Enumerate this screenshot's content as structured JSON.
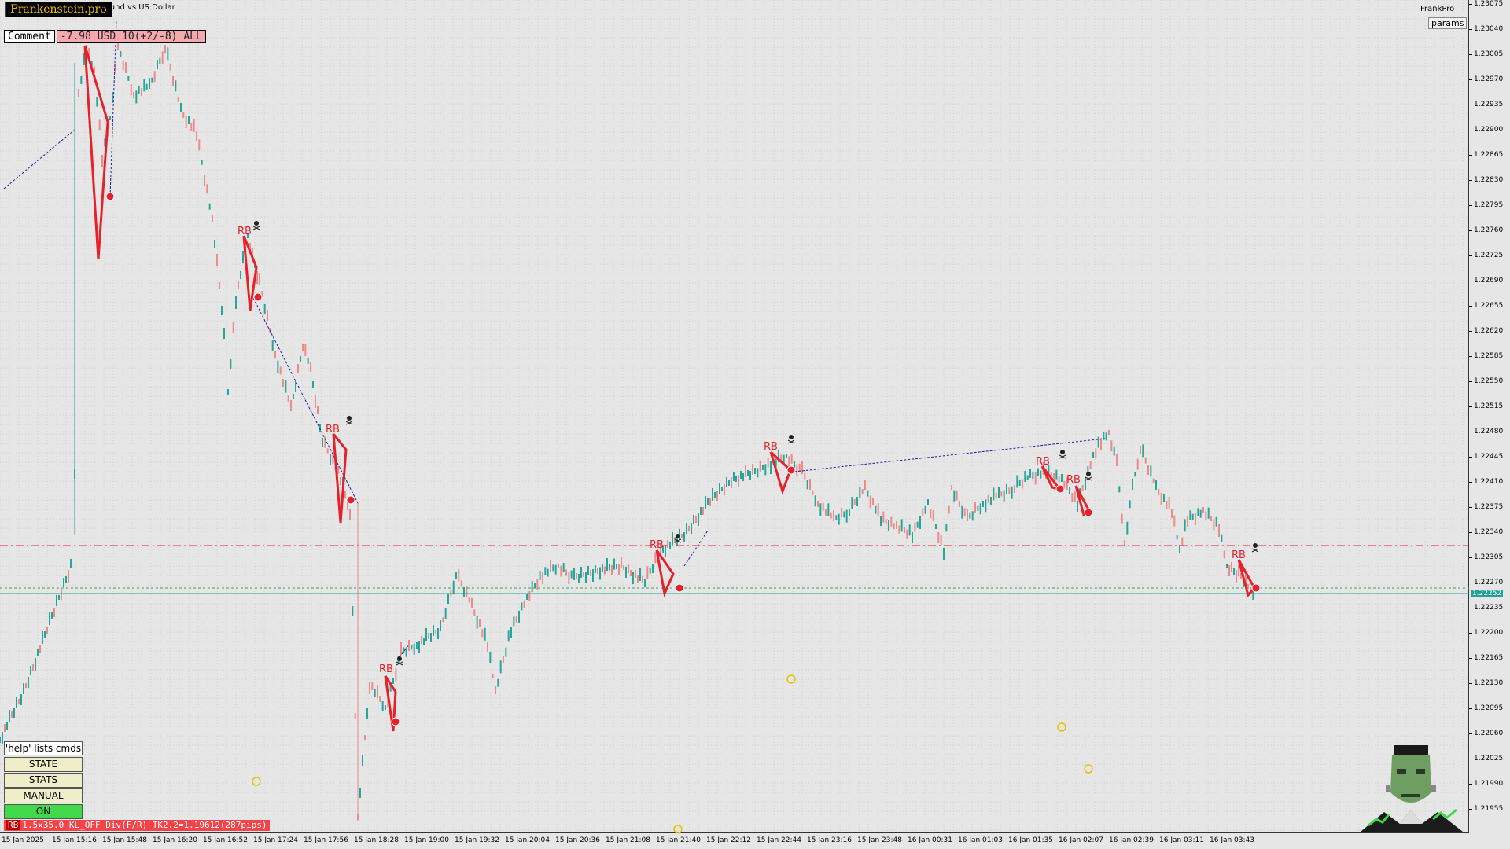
{
  "brand": "Frankenstein.pro",
  "symbol": "Pound vs US Dollar",
  "comment_label": "Comment",
  "comment_value": "-7.98 USD 10(+2/-8) ALL",
  "brand_right": "FrankPro",
  "params_label": "params",
  "help_label": "'help' lists cmds",
  "buttons": [
    "STATE",
    "STATS",
    "MANUAL",
    "ON"
  ],
  "status_rb": "RB",
  "status_text": "1.5x35.0 KL_OFF Div(F/R) TK2.2=1.19612(287pips)",
  "current_price": "1.22252",
  "price_ticks": [
    "1.23075",
    "1.23040",
    "1.23005",
    "1.22970",
    "1.22935",
    "1.22900",
    "1.22865",
    "1.22830",
    "1.22795",
    "1.22760",
    "1.22725",
    "1.22690",
    "1.22655",
    "1.22620",
    "1.22585",
    "1.22550",
    "1.22515",
    "1.22480",
    "1.22445",
    "1.22410",
    "1.22375",
    "1.22340",
    "1.22305",
    "1.22270",
    "1.22235",
    "1.22200",
    "1.22165",
    "1.22130",
    "1.22095",
    "1.22060",
    "1.22025",
    "1.21990",
    "1.21955"
  ],
  "time_ticks": [
    "15 Jan 2025",
    "15 Jan 15:16",
    "15 Jan 15:48",
    "15 Jan 16:20",
    "15 Jan 16:52",
    "15 Jan 17:24",
    "15 Jan 17:56",
    "15 Jan 18:28",
    "15 Jan 19:00",
    "15 Jan 19:32",
    "15 Jan 20:04",
    "15 Jan 20:36",
    "15 Jan 21:08",
    "15 Jan 21:40",
    "15 Jan 22:12",
    "15 Jan 22:44",
    "15 Jan 23:16",
    "15 Jan 23:48",
    "16 Jan 00:31",
    "16 Jan 01:03",
    "16 Jan 01:35",
    "16 Jan 02:07",
    "16 Jan 02:39",
    "16 Jan 03:11",
    "16 Jan 03:43"
  ],
  "rb_label": "RB",
  "colors": {
    "bull": "#26a69a",
    "bear": "#ef8a8a",
    "pattern": "#e8202a",
    "trend": "#1a1a9a",
    "level_red": "#e8202a",
    "level_green": "#2aa84a",
    "level_teal": "#20a29a"
  }
}
